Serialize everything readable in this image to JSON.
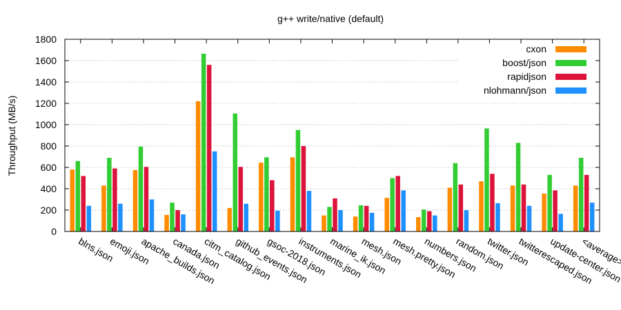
{
  "chart_data": {
    "type": "bar",
    "title": "g++ write/native (default)",
    "ylabel": "Throughput (MB/s)",
    "xlabel": "",
    "ylim": [
      0,
      1800
    ],
    "yticks": [
      0,
      200,
      400,
      600,
      800,
      1000,
      1200,
      1400,
      1600,
      1800
    ],
    "grid": true,
    "legend_position": "top-right",
    "categories": [
      "blns.json",
      "emoji.json",
      "apache_builds.json",
      "canada.json",
      "citm_catalog.json",
      "github_events.json",
      "gsoc-2018.json",
      "instruments.json",
      "marine_ik.json",
      "mesh.json",
      "mesh.pretty.json",
      "numbers.json",
      "random.json",
      "twitter.json",
      "twitterescaped.json",
      "update-center.json",
      "<average>"
    ],
    "series": [
      {
        "name": "cxon",
        "color": "#ff8c00",
        "values": [
          580,
          430,
          575,
          155,
          1220,
          220,
          645,
          695,
          150,
          140,
          315,
          135,
          410,
          470,
          430,
          355,
          430
        ]
      },
      {
        "name": "boost/json",
        "color": "#32cd32",
        "values": [
          660,
          690,
          795,
          270,
          1665,
          1105,
          695,
          950,
          230,
          245,
          500,
          205,
          640,
          965,
          830,
          530,
          690
        ]
      },
      {
        "name": "rapidjson",
        "color": "#dc143c",
        "values": [
          520,
          590,
          605,
          200,
          1560,
          605,
          480,
          800,
          310,
          240,
          520,
          190,
          440,
          540,
          440,
          385,
          530
        ]
      },
      {
        "name": "nlohmann/json",
        "color": "#1e90ff",
        "values": [
          240,
          260,
          300,
          160,
          750,
          260,
          195,
          380,
          200,
          175,
          385,
          150,
          200,
          265,
          240,
          165,
          270
        ]
      }
    ]
  }
}
